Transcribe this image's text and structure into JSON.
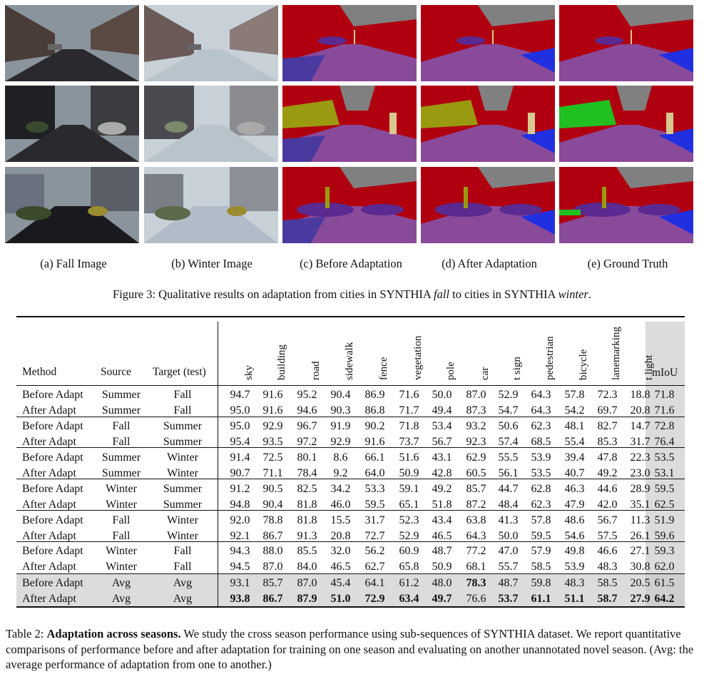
{
  "figure": {
    "subcaptions": [
      "(a) Fall Image",
      "(b) Winter Image",
      "(c) Before Adaptation",
      "(d) After Adaptation",
      "(e) Ground Truth"
    ],
    "caption_prefix": "Figure 3: Qualitative results on adaptation from cities in SYNTHIA ",
    "caption_fall": "fall",
    "caption_mid": " to cities in SYNTHIA ",
    "caption_winter": "winter",
    "caption_end": ".",
    "palette": {
      "sky": "#808080",
      "building": "#b00010",
      "road": "#8a4a9a",
      "sidewalk": "#4a3aa0",
      "lanemarking": "#2030e0",
      "vegetation": "#9a9a10",
      "car": "#5a2a90",
      "pole": "#d8c890",
      "green": "#20c020"
    }
  },
  "table": {
    "headers": {
      "method": "Method",
      "source": "Source",
      "target": "Target (test)",
      "classes": [
        "sky",
        "building",
        "road",
        "sidewalk",
        "fence",
        "vegetation",
        "pole",
        "car",
        "t sign",
        "pedestrian",
        "bicycle",
        "lanemarking",
        "t light"
      ],
      "miou": "mIoU"
    },
    "rows": [
      {
        "method": "Before Adapt",
        "source": "Summer",
        "target": "Fall",
        "values": [
          "94.7",
          "91.6",
          "95.2",
          "90.4",
          "86.9",
          "71.6",
          "50.0",
          "87.0",
          "52.9",
          "64.3",
          "57.8",
          "72.3",
          "18.8"
        ],
        "miou": "71.8"
      },
      {
        "method": "After Adapt",
        "source": "Summer",
        "target": "Fall",
        "values": [
          "95.0",
          "91.6",
          "94.6",
          "90.3",
          "86.8",
          "71.7",
          "49.4",
          "87.3",
          "54.7",
          "64.3",
          "54.2",
          "69.7",
          "20.8"
        ],
        "miou": "71.6"
      },
      {
        "method": "Before Adapt",
        "source": "Fall",
        "target": "Summer",
        "values": [
          "95.0",
          "92.9",
          "96.7",
          "91.9",
          "90.2",
          "71.8",
          "53.4",
          "93.2",
          "50.6",
          "62.3",
          "48.1",
          "82.7",
          "14.7"
        ],
        "miou": "72.8"
      },
      {
        "method": "After Adapt",
        "source": "Fall",
        "target": "Summer",
        "values": [
          "95.4",
          "93.5",
          "97.2",
          "92.9",
          "91.6",
          "73.7",
          "56.7",
          "92.3",
          "57.4",
          "68.5",
          "55.4",
          "85.3",
          "31.7"
        ],
        "miou": "76.4"
      },
      {
        "method": "Before Adapt",
        "source": "Summer",
        "target": "Winter",
        "values": [
          "91.4",
          "72.5",
          "80.1",
          "8.6",
          "66.1",
          "51.6",
          "43.1",
          "62.9",
          "55.5",
          "53.9",
          "39.4",
          "47.8",
          "22.3"
        ],
        "miou": "53.5"
      },
      {
        "method": "After Adapt",
        "source": "Summer",
        "target": "Winter",
        "values": [
          "90.7",
          "71.1",
          "78.4",
          "9.2",
          "64.0",
          "50.9",
          "42.8",
          "60.5",
          "56.1",
          "53.5",
          "40.7",
          "49.2",
          "23.0"
        ],
        "miou": "53.1"
      },
      {
        "method": "Before Adapt",
        "source": "Winter",
        "target": "Summer",
        "values": [
          "91.2",
          "90.5",
          "82.5",
          "34.2",
          "53.3",
          "59.1",
          "49.2",
          "85.7",
          "44.7",
          "62.8",
          "46.3",
          "44.6",
          "28.9"
        ],
        "miou": "59.5"
      },
      {
        "method": "After Adapt",
        "source": "Winter",
        "target": "Summer",
        "values": [
          "94.8",
          "90.4",
          "81.8",
          "46.0",
          "59.5",
          "65.1",
          "51.8",
          "87.2",
          "48.4",
          "62.3",
          "47.9",
          "42.0",
          "35.1"
        ],
        "miou": "62.5"
      },
      {
        "method": "Before Adapt",
        "source": "Fall",
        "target": "Winter",
        "values": [
          "92.0",
          "78.8",
          "81.8",
          "15.5",
          "31.7",
          "52.3",
          "43.4",
          "63.8",
          "41.3",
          "57.8",
          "48.6",
          "56.7",
          "11.3"
        ],
        "miou": "51.9"
      },
      {
        "method": "After Adapt",
        "source": "Fall",
        "target": "Winter",
        "values": [
          "92.1",
          "86.7",
          "91.3",
          "20.8",
          "72.7",
          "52.9",
          "46.5",
          "64.3",
          "50.0",
          "59.5",
          "54.6",
          "57.5",
          "26.1"
        ],
        "miou": "59.6"
      },
      {
        "method": "Before Adapt",
        "source": "Winter",
        "target": "Fall",
        "values": [
          "94.3",
          "88.0",
          "85.5",
          "32.0",
          "56.2",
          "60.9",
          "48.7",
          "77.2",
          "47.0",
          "57.9",
          "49.8",
          "46.6",
          "27.1"
        ],
        "miou": "59.3"
      },
      {
        "method": "After Adapt",
        "source": "Winter",
        "target": "Fall",
        "values": [
          "94.5",
          "87.0",
          "84.0",
          "46.5",
          "62.7",
          "65.8",
          "50.9",
          "68.1",
          "55.7",
          "58.5",
          "53.9",
          "48.3",
          "30.8"
        ],
        "miou": "62.0"
      },
      {
        "method": "Before Adapt",
        "source": "Avg",
        "target": "Avg",
        "values": [
          "93.1",
          "85.7",
          "87.0",
          "45.4",
          "64.1",
          "61.2",
          "48.0",
          "78.3",
          "48.7",
          "59.8",
          "48.3",
          "58.5",
          "20.5"
        ],
        "miou": "61.5",
        "bold": [
          7
        ]
      },
      {
        "method": "After Adapt",
        "source": "Avg",
        "target": "Avg",
        "values": [
          "93.8",
          "86.7",
          "87.9",
          "51.0",
          "72.9",
          "63.4",
          "49.7",
          "76.6",
          "53.7",
          "61.1",
          "51.1",
          "58.7",
          "27.9"
        ],
        "miou": "64.2",
        "bold": [
          0,
          1,
          2,
          3,
          4,
          5,
          6,
          8,
          9,
          10,
          11,
          12,
          13
        ]
      }
    ]
  },
  "caption": {
    "prefix": "Table 2: ",
    "bold": "Adaptation across seasons.",
    "text": " We study the cross season performance using sub-sequences of SYNTHIA dataset. We report quantitative comparisons of performance before and after adaptation for training on one season and evaluating on another unannotated novel season. (Avg: the average performance of adaptation from one to another.)"
  }
}
